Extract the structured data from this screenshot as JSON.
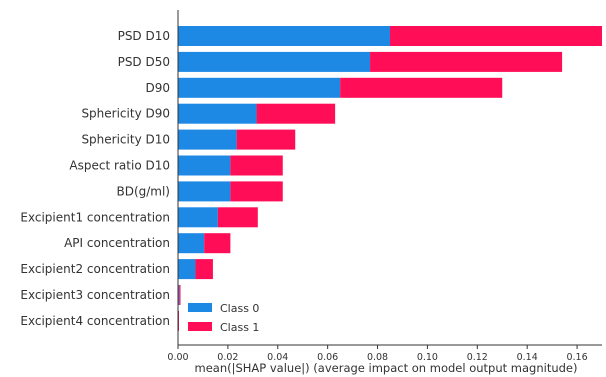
{
  "chart_data": {
    "type": "bar",
    "orientation": "horizontal",
    "stacked": true,
    "categories": [
      "PSD D10",
      "PSD D50",
      "D90",
      "Sphericity D90",
      "Sphericity D10",
      "Aspect ratio D10",
      "BD(g/ml)",
      "Excipient1 concentration",
      "API concentration",
      "Excipient2 concentration",
      "Excipient3 concentration",
      "Excipient4 concentration"
    ],
    "series": [
      {
        "name": "Class 0",
        "color": "#1E88E5",
        "values": [
          0.085,
          0.077,
          0.065,
          0.0315,
          0.0235,
          0.021,
          0.021,
          0.016,
          0.0105,
          0.007,
          0.0005,
          0.0002
        ]
      },
      {
        "name": "Class 1",
        "color": "#FF0D57",
        "values": [
          0.085,
          0.077,
          0.065,
          0.0315,
          0.0235,
          0.021,
          0.021,
          0.016,
          0.0105,
          0.007,
          0.0005,
          0.0002
        ]
      }
    ],
    "xlabel": "mean(|SHAP value|) (average impact on model output magnitude)",
    "ylabel": "",
    "xlim": [
      0.0,
      0.17
    ],
    "xticks": [
      "0.00",
      "0.02",
      "0.04",
      "0.06",
      "0.08",
      "0.10",
      "0.12",
      "0.14",
      "0.16"
    ],
    "xtick_values": [
      0,
      0.02,
      0.04,
      0.06,
      0.08,
      0.1,
      0.12,
      0.14,
      0.16
    ],
    "legend": {
      "placement": "lower-left",
      "entries": [
        "Class 0",
        "Class 1"
      ]
    },
    "grid": false
  }
}
